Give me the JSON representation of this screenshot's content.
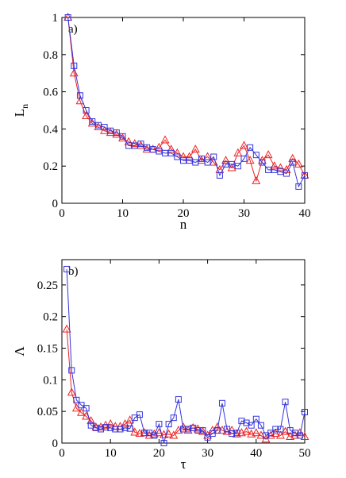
{
  "colors": {
    "blue_series": "#3333dd",
    "red_series": "#ee2222",
    "axis": "#000000"
  },
  "chart_data": [
    {
      "type": "line",
      "annotation": "a)",
      "xlabel": "n",
      "ylabel_main": "L",
      "ylabel_sub": "n",
      "xlim": [
        0,
        40
      ],
      "ylim": [
        0,
        1
      ],
      "xticks": [
        0,
        10,
        20,
        30,
        40
      ],
      "yticks": [
        0,
        0.2,
        0.4,
        0.6,
        0.8,
        1
      ],
      "ytick_labels": [
        "0",
        "0.2",
        "0.4",
        "0.6",
        "0.8",
        "1"
      ],
      "grid": false,
      "series": [
        {
          "marker": "square",
          "color": "#3333dd",
          "x": [
            1,
            2,
            3,
            4,
            5,
            6,
            7,
            8,
            9,
            10,
            11,
            12,
            13,
            14,
            15,
            16,
            17,
            18,
            19,
            20,
            21,
            22,
            23,
            24,
            25,
            26,
            27,
            28,
            29,
            30,
            31,
            32,
            33,
            34,
            35,
            36,
            37,
            38,
            39,
            40
          ],
          "y": [
            1.0,
            0.74,
            0.58,
            0.5,
            0.44,
            0.42,
            0.41,
            0.39,
            0.38,
            0.36,
            0.31,
            0.31,
            0.32,
            0.3,
            0.29,
            0.28,
            0.27,
            0.27,
            0.25,
            0.23,
            0.23,
            0.22,
            0.24,
            0.22,
            0.25,
            0.15,
            0.21,
            0.21,
            0.2,
            0.24,
            0.3,
            0.26,
            0.22,
            0.18,
            0.18,
            0.17,
            0.16,
            0.22,
            0.09,
            0.15
          ]
        },
        {
          "marker": "triangle",
          "color": "#ee2222",
          "x": [
            1,
            2,
            3,
            4,
            5,
            6,
            7,
            8,
            9,
            10,
            11,
            12,
            13,
            14,
            15,
            16,
            17,
            18,
            19,
            20,
            21,
            22,
            23,
            24,
            25,
            26,
            27,
            28,
            29,
            30,
            31,
            32,
            33,
            34,
            35,
            36,
            37,
            38,
            39,
            40
          ],
          "y": [
            1.0,
            0.7,
            0.55,
            0.47,
            0.43,
            0.41,
            0.39,
            0.38,
            0.37,
            0.35,
            0.33,
            0.32,
            0.31,
            0.29,
            0.29,
            0.3,
            0.34,
            0.29,
            0.27,
            0.25,
            0.25,
            0.29,
            0.23,
            0.25,
            0.22,
            0.18,
            0.23,
            0.19,
            0.27,
            0.31,
            0.23,
            0.12,
            0.23,
            0.26,
            0.2,
            0.19,
            0.18,
            0.24,
            0.21,
            0.15
          ]
        }
      ]
    },
    {
      "type": "line",
      "annotation": "b)",
      "xlabel": "τ",
      "ylabel_main": "Λ",
      "ylabel_sub": "",
      "xlim": [
        0,
        50
      ],
      "ylim": [
        0,
        0.29
      ],
      "xticks": [
        0,
        10,
        20,
        30,
        40,
        50
      ],
      "yticks": [
        0,
        0.05,
        0.1,
        0.15,
        0.2,
        0.25
      ],
      "ytick_labels": [
        "0",
        "0.05",
        "0.1",
        "0.15",
        "0.2",
        "0.25"
      ],
      "grid": false,
      "series": [
        {
          "marker": "square",
          "color": "#3333dd",
          "x": [
            1,
            2,
            3,
            4,
            5,
            6,
            7,
            8,
            9,
            10,
            11,
            12,
            13,
            14,
            15,
            16,
            17,
            18,
            19,
            20,
            21,
            22,
            23,
            24,
            25,
            26,
            27,
            28,
            29,
            30,
            31,
            32,
            33,
            34,
            35,
            36,
            37,
            38,
            39,
            40,
            41,
            42,
            43,
            44,
            45,
            46,
            47,
            48,
            49,
            50
          ],
          "y": [
            0.275,
            0.115,
            0.068,
            0.06,
            0.055,
            0.028,
            0.024,
            0.022,
            0.025,
            0.024,
            0.022,
            0.022,
            0.024,
            0.023,
            0.04,
            0.045,
            0.016,
            0.016,
            0.012,
            0.03,
            0.0,
            0.03,
            0.04,
            0.069,
            0.022,
            0.022,
            0.024,
            0.02,
            0.02,
            0.009,
            0.015,
            0.02,
            0.063,
            0.022,
            0.015,
            0.016,
            0.035,
            0.032,
            0.028,
            0.038,
            0.028,
            0.012,
            0.016,
            0.022,
            0.022,
            0.065,
            0.02,
            0.016,
            0.012,
            0.049
          ]
        },
        {
          "marker": "triangle",
          "color": "#ee2222",
          "x": [
            1,
            2,
            3,
            4,
            5,
            6,
            7,
            8,
            9,
            10,
            11,
            12,
            13,
            14,
            15,
            16,
            17,
            18,
            19,
            20,
            21,
            22,
            23,
            24,
            25,
            26,
            27,
            28,
            29,
            30,
            31,
            32,
            33,
            34,
            35,
            36,
            37,
            38,
            39,
            40,
            41,
            42,
            43,
            44,
            45,
            46,
            47,
            48,
            49,
            50
          ],
          "y": [
            0.18,
            0.08,
            0.055,
            0.048,
            0.042,
            0.035,
            0.025,
            0.025,
            0.028,
            0.03,
            0.026,
            0.026,
            0.03,
            0.036,
            0.017,
            0.015,
            0.016,
            0.012,
            0.014,
            0.016,
            0.013,
            0.014,
            0.012,
            0.02,
            0.025,
            0.02,
            0.024,
            0.022,
            0.018,
            0.012,
            0.02,
            0.025,
            0.02,
            0.018,
            0.02,
            0.014,
            0.016,
            0.018,
            0.014,
            0.016,
            0.012,
            0.006,
            0.012,
            0.015,
            0.012,
            0.018,
            0.01,
            0.012,
            0.016,
            0.01
          ]
        }
      ]
    }
  ]
}
